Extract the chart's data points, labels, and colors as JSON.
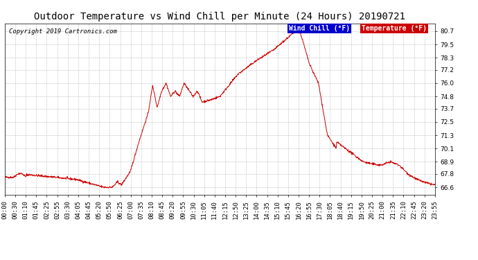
{
  "title": "Outdoor Temperature vs Wind Chill per Minute (24 Hours) 20190721",
  "copyright": "Copyright 2019 Cartronics.com",
  "legend_wind_chill": "Wind Chill (°F)",
  "legend_temperature": "Temperature (°F)",
  "yticks": [
    66.6,
    67.8,
    68.9,
    70.1,
    71.3,
    72.5,
    73.7,
    74.8,
    76.0,
    77.2,
    78.3,
    79.5,
    80.7
  ],
  "ylim": [
    65.9,
    81.4
  ],
  "xtick_labels": [
    "00:00",
    "00:30",
    "01:10",
    "01:45",
    "02:25",
    "02:55",
    "03:30",
    "04:05",
    "04:45",
    "05:20",
    "05:50",
    "06:25",
    "07:00",
    "07:35",
    "08:10",
    "08:45",
    "09:20",
    "09:55",
    "10:30",
    "11:05",
    "11:40",
    "12:15",
    "12:50",
    "13:25",
    "14:00",
    "14:35",
    "15:10",
    "15:45",
    "16:20",
    "16:55",
    "17:30",
    "18:05",
    "18:40",
    "19:15",
    "19:50",
    "20:25",
    "21:00",
    "21:35",
    "22:10",
    "22:45",
    "23:20",
    "23:55"
  ],
  "line_color": "#cc0000",
  "bg_color": "#ffffff",
  "grid_color": "#bbbbbb",
  "title_fontsize": 10,
  "copyright_fontsize": 6.5,
  "tick_fontsize": 6.5,
  "legend_fontsize": 7
}
